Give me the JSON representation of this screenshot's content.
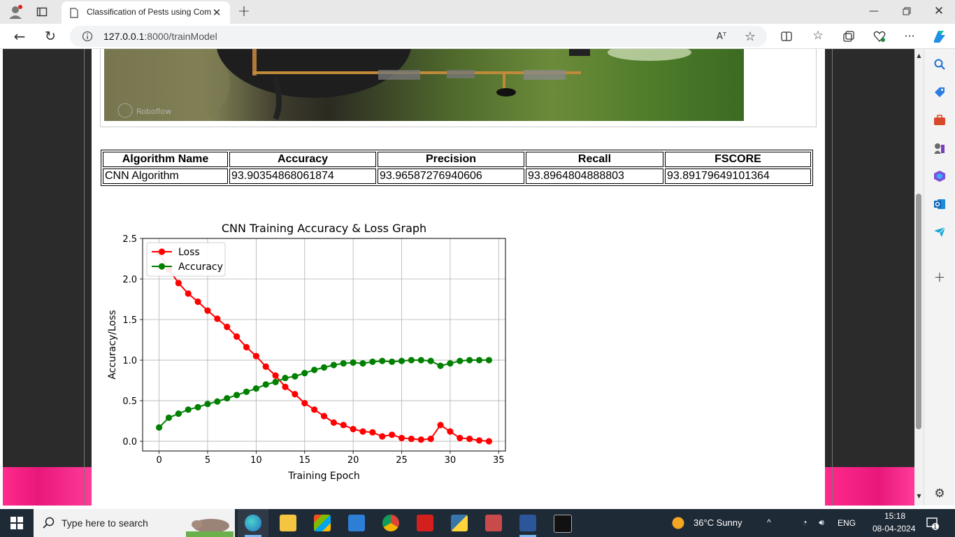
{
  "browser": {
    "tab_title": "Classification of Pests using Com",
    "url_host": "127.0.0.1",
    "url_path": ":8000/trainModel",
    "read_aloud_label": "Aᵀ"
  },
  "table": {
    "headers": [
      "Algorithm Name",
      "Accuracy",
      "Precision",
      "Recall",
      "FSCORE"
    ],
    "row": [
      "CNN Algorithm",
      "93.90354868061874",
      "93.96587276940606",
      "93.8964804888803",
      "93.89179649101364"
    ]
  },
  "chart_data": {
    "type": "line",
    "title": "CNN Training Accuracy & Loss Graph",
    "xlabel": "Training Epoch",
    "ylabel": "Accuracy/Loss",
    "xlim": [
      -1.7,
      35.7
    ],
    "ylim": [
      -0.12,
      2.5
    ],
    "xticks": [
      0,
      5,
      10,
      15,
      20,
      25,
      30,
      35
    ],
    "yticks": [
      0.0,
      0.5,
      1.0,
      1.5,
      2.0,
      2.5
    ],
    "grid": true,
    "legend_position": "top-left",
    "x": [
      0,
      1,
      2,
      3,
      4,
      5,
      6,
      7,
      8,
      9,
      10,
      11,
      12,
      13,
      14,
      15,
      16,
      17,
      18,
      19,
      20,
      21,
      22,
      23,
      24,
      25,
      26,
      27,
      28,
      29,
      30,
      31,
      32,
      33,
      34
    ],
    "series": [
      {
        "name": "Loss",
        "color": "#ff0000",
        "values": [
          2.33,
          2.12,
          1.95,
          1.82,
          1.72,
          1.61,
          1.51,
          1.41,
          1.29,
          1.16,
          1.05,
          0.92,
          0.81,
          0.67,
          0.58,
          0.47,
          0.39,
          0.31,
          0.23,
          0.2,
          0.15,
          0.12,
          0.11,
          0.06,
          0.08,
          0.04,
          0.03,
          0.02,
          0.03,
          0.2,
          0.12,
          0.04,
          0.03,
          0.01,
          0.0
        ]
      },
      {
        "name": "Accuracy",
        "color": "#008000",
        "values": [
          0.17,
          0.29,
          0.34,
          0.39,
          0.42,
          0.46,
          0.49,
          0.53,
          0.57,
          0.61,
          0.65,
          0.7,
          0.73,
          0.78,
          0.8,
          0.84,
          0.88,
          0.91,
          0.94,
          0.96,
          0.97,
          0.96,
          0.98,
          0.99,
          0.98,
          0.99,
          1.0,
          1.0,
          0.99,
          0.93,
          0.96,
          0.99,
          1.0,
          1.0,
          1.0
        ]
      }
    ]
  },
  "taskbar": {
    "search_placeholder": "Type here to search",
    "weather": "36°C  Sunny",
    "lang": "ENG",
    "time": "15:18",
    "date": "08-04-2024",
    "notif_count": "1"
  }
}
